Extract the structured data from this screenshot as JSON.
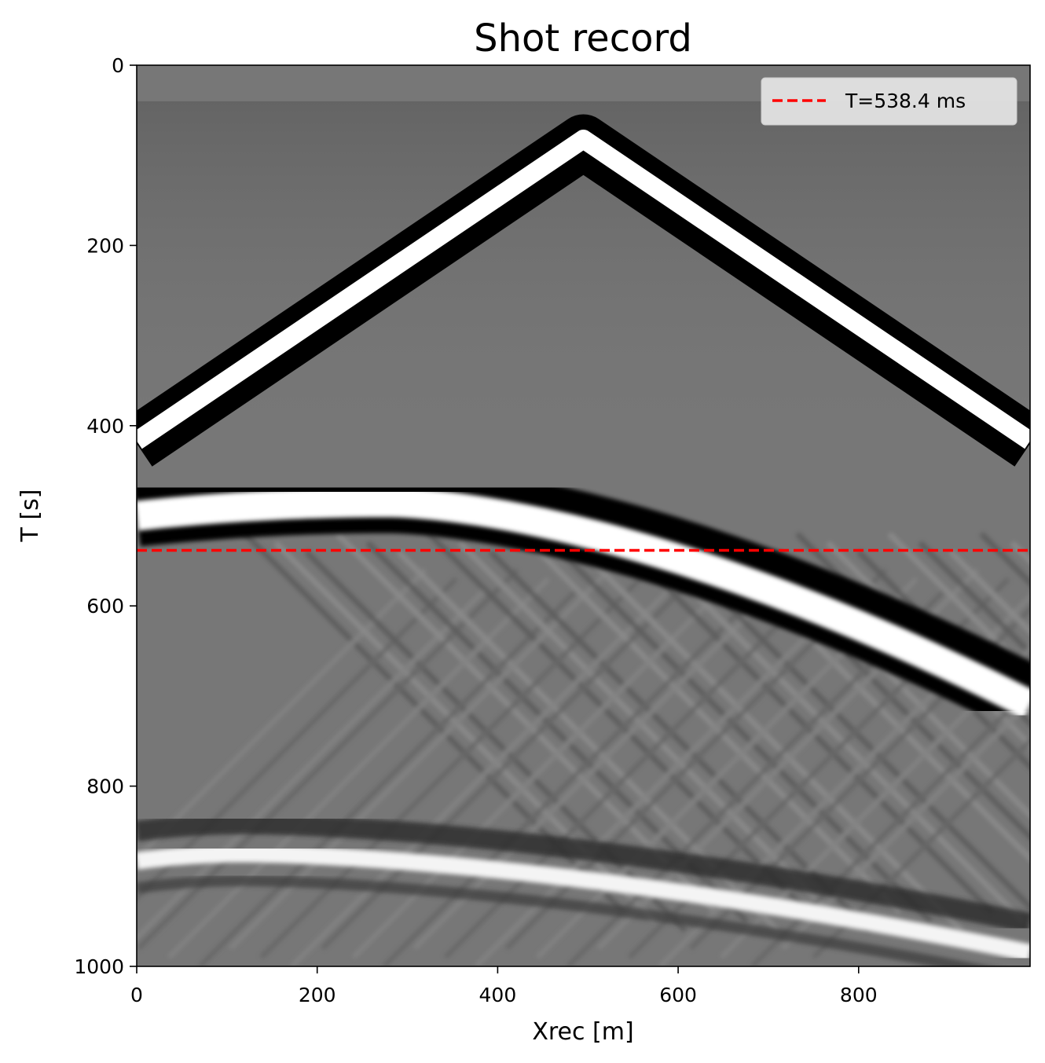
{
  "chart_data": {
    "type": "heatmap",
    "title": "Shot record",
    "xlabel": "Xrec [m]",
    "ylabel": "T [s]",
    "xlim": [
      0,
      990
    ],
    "ylim": [
      1000,
      0
    ],
    "x_ticks": [
      0,
      200,
      400,
      600,
      800
    ],
    "y_ticks": [
      0,
      200,
      400,
      600,
      800,
      1000
    ],
    "x_tick_labels": [
      "0",
      "200",
      "400",
      "600",
      "800"
    ],
    "y_tick_labels": [
      "0",
      "200",
      "400",
      "600",
      "800",
      "1000"
    ],
    "colormap": "gray",
    "background_color": "#777777",
    "grid": false,
    "legend": {
      "position": "top-right",
      "entries": [
        {
          "label": "T=538.4 ms",
          "color": "#ff0000",
          "style": "dashed"
        }
      ]
    },
    "hline": {
      "y": 538.4,
      "color": "#ff0000",
      "style": "dashed"
    },
    "events": [
      {
        "name": "direct wave apex",
        "source_x": 495,
        "apex_t": 20,
        "end_t_at_x0": 355,
        "end_t_at_x990": 355
      },
      {
        "name": "first reflection",
        "apex_x": 280,
        "apex_t": 445,
        "t_at_x0": 460,
        "t_at_x990": 670
      },
      {
        "name": "second reflection",
        "apex_x": 120,
        "apex_t": 850,
        "t_at_x0": 858,
        "t_at_x990": 960
      }
    ]
  }
}
